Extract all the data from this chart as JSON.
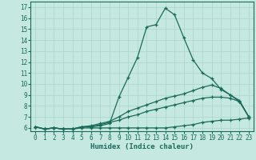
{
  "xlabel": "Humidex (Indice chaleur)",
  "ylabel": "",
  "bg_color": "#c5e8e0",
  "grid_color": "#aad4cc",
  "line_color": "#1a6b5a",
  "xlim": [
    -0.5,
    23.5
  ],
  "ylim": [
    5.7,
    17.5
  ],
  "yticks": [
    6,
    7,
    8,
    9,
    10,
    11,
    12,
    13,
    14,
    15,
    16,
    17
  ],
  "xticks": [
    0,
    1,
    2,
    3,
    4,
    5,
    6,
    7,
    8,
    9,
    10,
    11,
    12,
    13,
    14,
    15,
    16,
    17,
    18,
    19,
    20,
    21,
    22,
    23
  ],
  "series": [
    {
      "x": [
        0,
        1,
        2,
        3,
        4,
        5,
        6,
        7,
        8,
        9,
        10,
        11,
        12,
        13,
        14,
        15,
        16,
        17,
        18,
        19,
        20,
        21,
        22,
        23
      ],
      "y": [
        6.1,
        5.9,
        6.0,
        5.9,
        5.9,
        6.1,
        6.1,
        6.2,
        6.4,
        8.8,
        10.6,
        12.4,
        15.2,
        15.4,
        16.9,
        16.3,
        14.2,
        12.2,
        11.0,
        10.5,
        9.5,
        9.0,
        8.4,
        7.0
      ]
    },
    {
      "x": [
        0,
        1,
        2,
        3,
        4,
        5,
        6,
        7,
        8,
        9,
        10,
        11,
        12,
        13,
        14,
        15,
        16,
        17,
        18,
        19,
        20,
        21,
        22,
        23
      ],
      "y": [
        6.1,
        5.9,
        6.0,
        5.9,
        5.9,
        6.1,
        6.2,
        6.4,
        6.6,
        7.0,
        7.5,
        7.8,
        8.1,
        8.4,
        8.7,
        8.9,
        9.1,
        9.4,
        9.7,
        9.9,
        9.6,
        9.0,
        8.5,
        7.0
      ]
    },
    {
      "x": [
        0,
        1,
        2,
        3,
        4,
        5,
        6,
        7,
        8,
        9,
        10,
        11,
        12,
        13,
        14,
        15,
        16,
        17,
        18,
        19,
        20,
        21,
        22,
        23
      ],
      "y": [
        6.1,
        5.9,
        6.0,
        5.9,
        5.9,
        6.1,
        6.1,
        6.3,
        6.5,
        6.7,
        7.0,
        7.2,
        7.5,
        7.7,
        7.9,
        8.1,
        8.3,
        8.5,
        8.7,
        8.8,
        8.8,
        8.7,
        8.4,
        7.0
      ]
    },
    {
      "x": [
        0,
        1,
        2,
        3,
        4,
        5,
        6,
        7,
        8,
        9,
        10,
        11,
        12,
        13,
        14,
        15,
        16,
        17,
        18,
        19,
        20,
        21,
        22,
        23
      ],
      "y": [
        6.1,
        5.9,
        6.0,
        5.9,
        5.9,
        6.0,
        6.0,
        6.0,
        6.0,
        6.0,
        6.0,
        6.0,
        6.0,
        6.0,
        6.0,
        6.1,
        6.2,
        6.3,
        6.5,
        6.6,
        6.7,
        6.7,
        6.8,
        6.9
      ]
    }
  ]
}
